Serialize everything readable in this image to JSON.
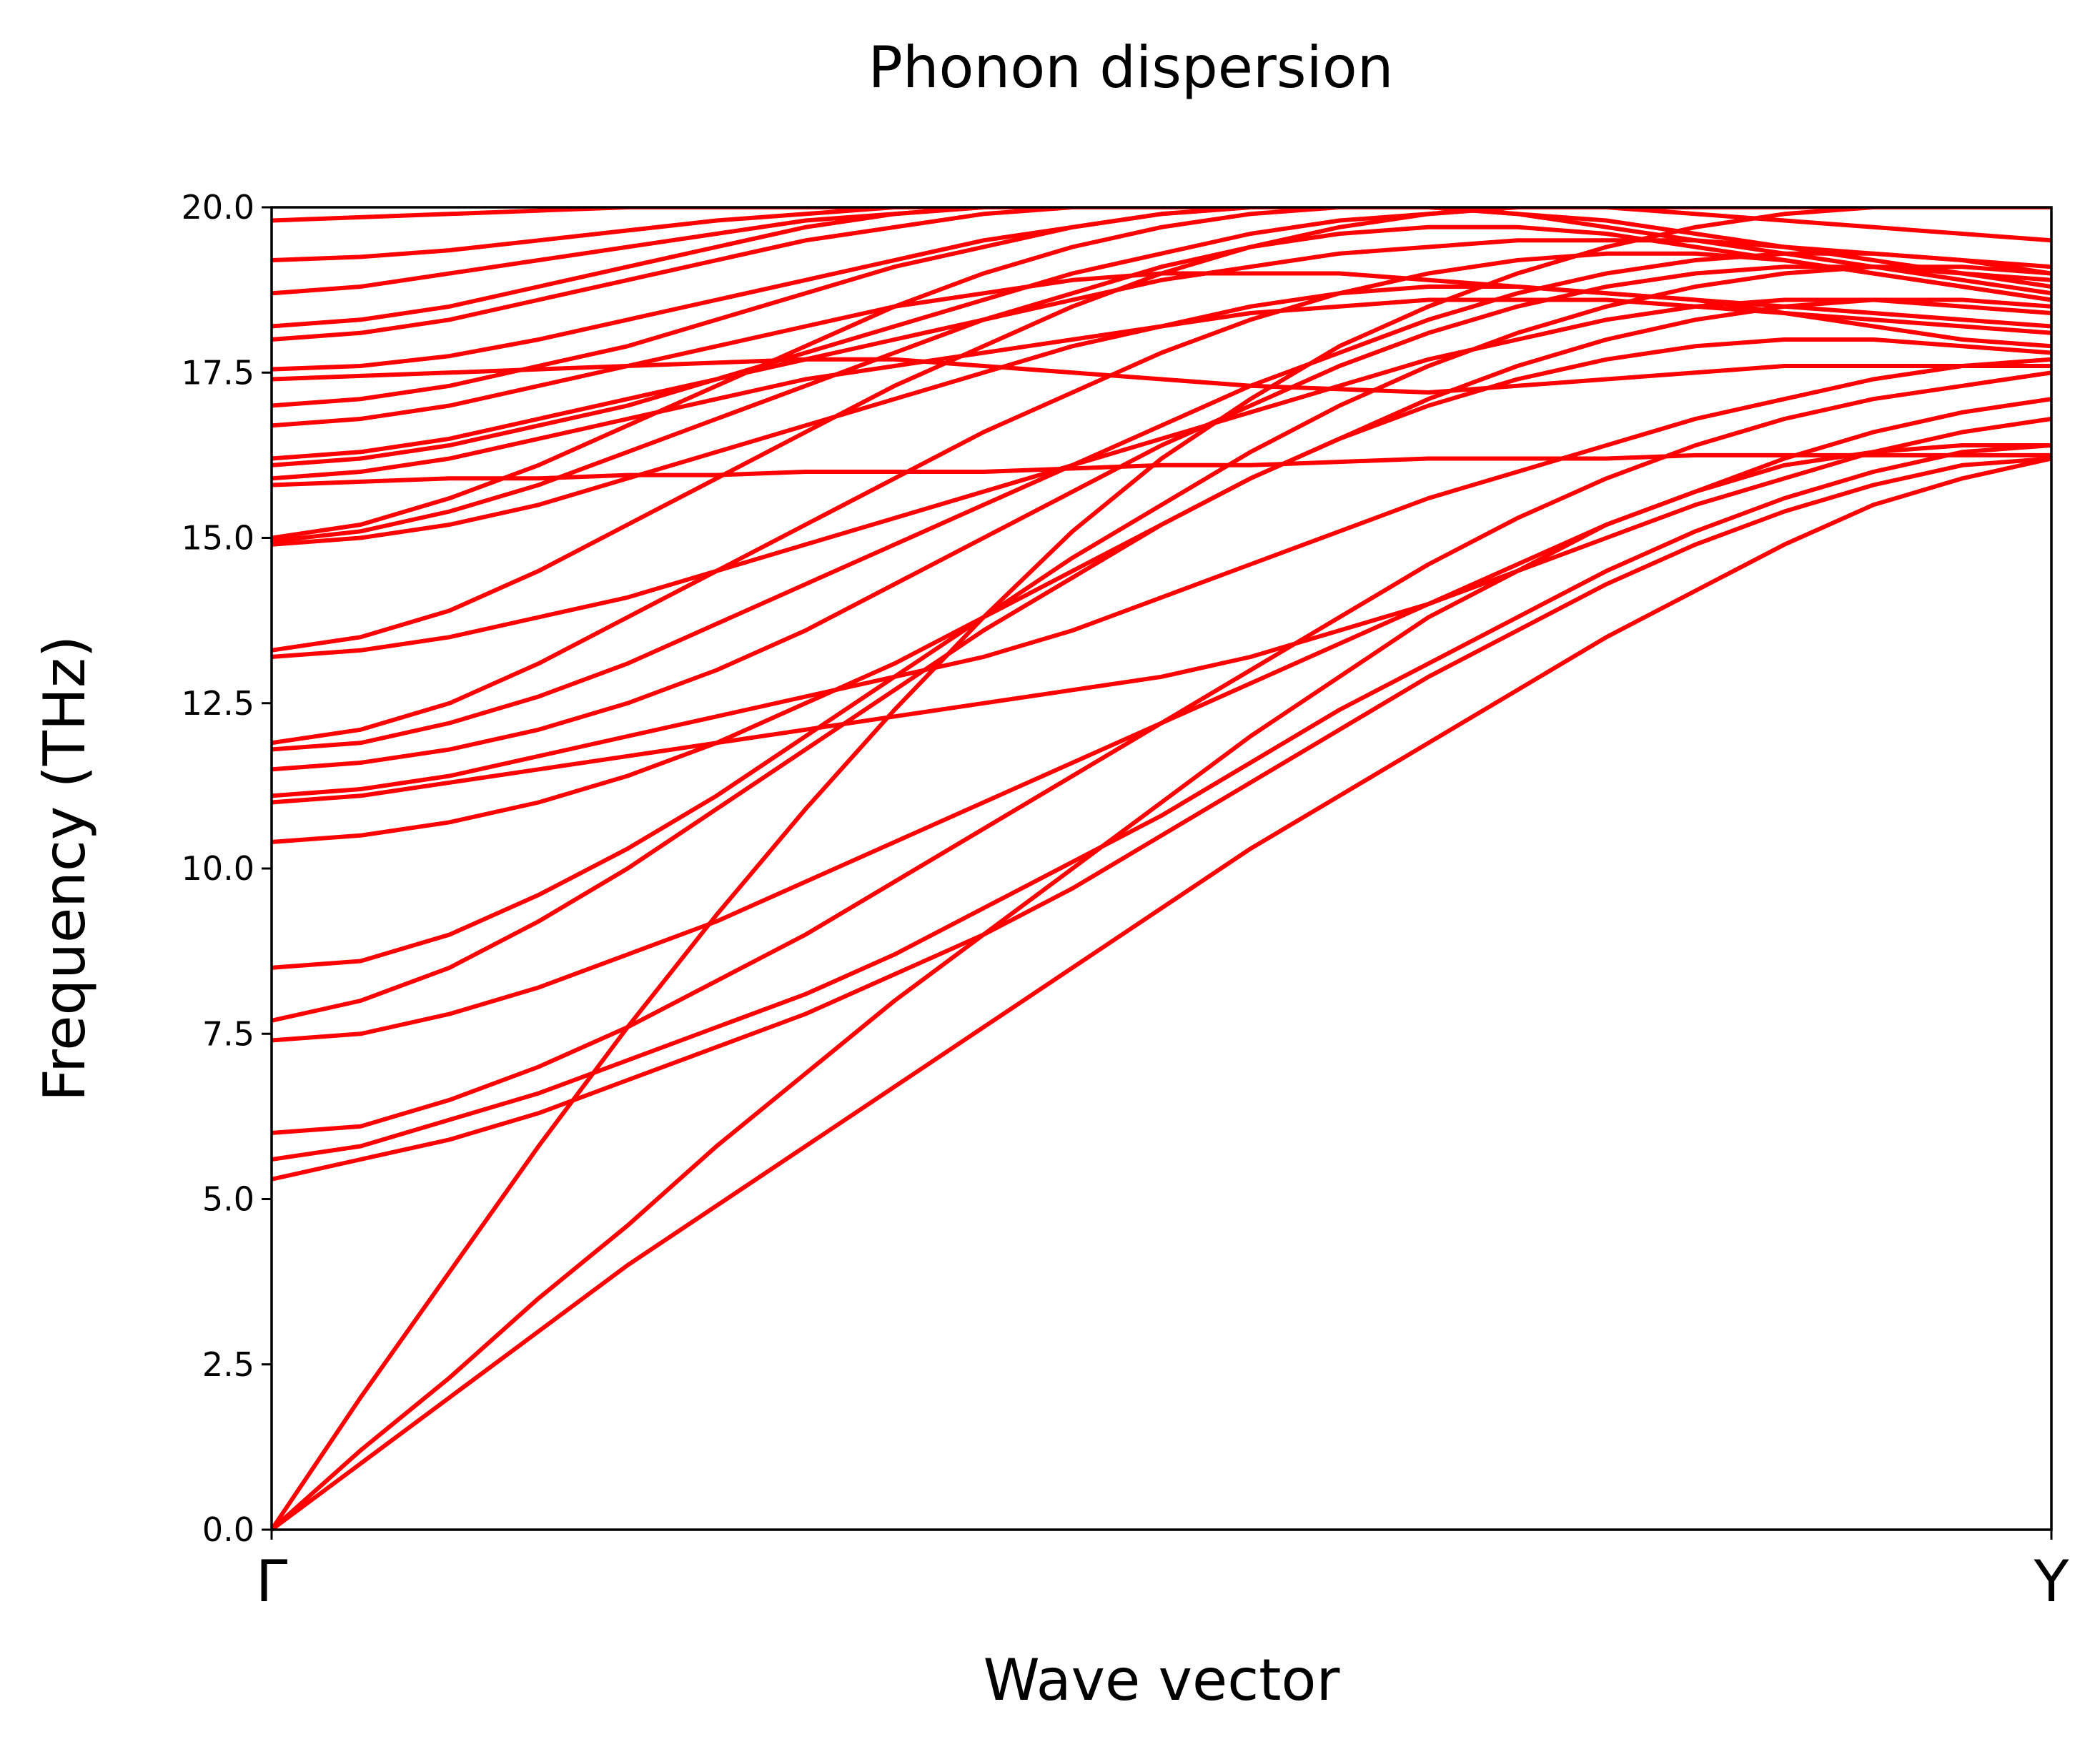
{
  "chart_data": {
    "type": "line",
    "title": "Phonon dispersion",
    "xlabel": "Wave vector",
    "ylabel": "Frequency (THz)",
    "ylim": [
      0,
      20
    ],
    "yticks": [
      "0.0",
      "2.5",
      "5.0",
      "7.5",
      "10.0",
      "12.5",
      "15.0",
      "17.5",
      "20.0"
    ],
    "xticks": [
      "Γ",
      "Y"
    ],
    "grid": false,
    "line_color": "#ff0000",
    "zero_line_color": "#000000",
    "x_samples": [
      0,
      0.05,
      0.1,
      0.15,
      0.2,
      0.25,
      0.3,
      0.35,
      0.4,
      0.45,
      0.5,
      0.55,
      0.6,
      0.65,
      0.7,
      0.75,
      0.8,
      0.85,
      0.9,
      0.95,
      1.0
    ],
    "series": [
      {
        "values": [
          0,
          1.0,
          2.0,
          3.0,
          4.0,
          4.9,
          5.8,
          6.7,
          7.6,
          8.5,
          9.4,
          10.3,
          11.1,
          11.9,
          12.7,
          13.5,
          14.2,
          14.9,
          15.5,
          15.9,
          16.2
        ]
      },
      {
        "values": [
          0,
          1.2,
          2.3,
          3.5,
          4.6,
          5.8,
          6.9,
          8.0,
          9.0,
          10.0,
          11.0,
          12.0,
          12.9,
          13.8,
          14.5,
          15.2,
          15.7,
          16.1,
          16.3,
          16.4,
          16.4
        ]
      },
      {
        "values": [
          0,
          2.0,
          3.9,
          5.8,
          7.6,
          9.3,
          10.9,
          12.4,
          13.8,
          15.1,
          16.2,
          17.1,
          17.9,
          18.5,
          19.0,
          19.4,
          19.7,
          19.9,
          20.0,
          20.0,
          20.0
        ]
      },
      {
        "values": [
          5.3,
          5.6,
          5.9,
          6.3,
          6.8,
          7.3,
          7.8,
          8.4,
          9.0,
          9.7,
          10.5,
          11.3,
          12.1,
          12.9,
          13.6,
          14.3,
          14.9,
          15.4,
          15.8,
          16.1,
          16.2
        ]
      },
      {
        "values": [
          5.6,
          5.8,
          6.2,
          6.6,
          7.1,
          7.6,
          8.1,
          8.7,
          9.4,
          10.1,
          10.8,
          11.6,
          12.4,
          13.1,
          13.8,
          14.5,
          15.1,
          15.6,
          16.0,
          16.3,
          16.4
        ]
      },
      {
        "values": [
          6.0,
          6.1,
          6.5,
          7.0,
          7.6,
          8.3,
          9.0,
          9.8,
          10.6,
          11.4,
          12.2,
          13.0,
          13.8,
          14.6,
          15.3,
          15.9,
          16.4,
          16.8,
          17.1,
          17.3,
          17.5
        ]
      },
      {
        "values": [
          7.4,
          7.5,
          7.8,
          8.2,
          8.7,
          9.2,
          9.8,
          10.4,
          11.0,
          11.6,
          12.2,
          12.8,
          13.4,
          14.0,
          14.6,
          15.2,
          15.7,
          16.2,
          16.6,
          16.9,
          17.1
        ]
      },
      {
        "values": [
          7.7,
          8.0,
          8.5,
          9.2,
          10.0,
          10.9,
          11.8,
          12.7,
          13.6,
          14.4,
          15.2,
          15.9,
          16.5,
          17.0,
          17.4,
          17.7,
          17.9,
          18.0,
          18.0,
          17.9,
          17.8
        ]
      },
      {
        "values": [
          8.5,
          8.6,
          9.0,
          9.6,
          10.3,
          11.1,
          12.0,
          12.9,
          13.8,
          14.7,
          15.5,
          16.3,
          17.0,
          17.6,
          18.1,
          18.5,
          18.8,
          19.0,
          19.1,
          19.1,
          19.0
        ]
      },
      {
        "values": [
          10.4,
          10.5,
          10.7,
          11.0,
          11.4,
          11.9,
          12.5,
          13.1,
          13.8,
          14.5,
          15.2,
          15.9,
          16.5,
          17.1,
          17.6,
          18.0,
          18.3,
          18.5,
          18.6,
          18.6,
          18.5
        ]
      },
      {
        "values": [
          11.0,
          11.1,
          11.3,
          11.5,
          11.7,
          11.9,
          12.1,
          12.3,
          12.5,
          12.7,
          12.9,
          13.2,
          13.6,
          14.0,
          14.5,
          15.0,
          15.5,
          15.9,
          16.3,
          16.6,
          16.8
        ]
      },
      {
        "values": [
          11.1,
          11.2,
          11.4,
          11.7,
          12.0,
          12.3,
          12.6,
          12.9,
          13.2,
          13.6,
          14.1,
          14.6,
          15.1,
          15.6,
          16.0,
          16.4,
          16.8,
          17.1,
          17.4,
          17.6,
          17.7
        ]
      },
      {
        "values": [
          11.5,
          11.6,
          11.8,
          12.1,
          12.5,
          13.0,
          13.6,
          14.3,
          15.0,
          15.7,
          16.4,
          17.0,
          17.6,
          18.1,
          18.5,
          18.8,
          19.0,
          19.1,
          19.1,
          19.0,
          18.9
        ]
      },
      {
        "values": [
          11.8,
          11.9,
          12.2,
          12.6,
          13.1,
          13.7,
          14.3,
          14.9,
          15.5,
          16.1,
          16.7,
          17.3,
          17.8,
          18.3,
          18.7,
          19.0,
          19.2,
          19.3,
          19.3,
          19.2,
          19.0
        ]
      },
      {
        "values": [
          11.9,
          12.1,
          12.5,
          13.1,
          13.8,
          14.5,
          15.2,
          15.9,
          16.6,
          17.2,
          17.8,
          18.3,
          18.7,
          19.0,
          19.2,
          19.3,
          19.3,
          19.2,
          19.0,
          18.8,
          18.6
        ]
      },
      {
        "values": [
          13.2,
          13.3,
          13.5,
          13.8,
          14.1,
          14.5,
          14.9,
          15.3,
          15.7,
          16.1,
          16.5,
          16.9,
          17.3,
          17.7,
          18.0,
          18.3,
          18.5,
          18.6,
          18.6,
          18.5,
          18.4
        ]
      },
      {
        "values": [
          13.3,
          13.5,
          13.9,
          14.5,
          15.2,
          15.9,
          16.6,
          17.3,
          17.9,
          18.5,
          19.0,
          19.4,
          19.7,
          19.9,
          20.0,
          20.0,
          20.0,
          20.0,
          20.0,
          20.0,
          20.0
        ]
      },
      {
        "values": [
          14.9,
          15.0,
          15.2,
          15.5,
          15.9,
          16.3,
          16.7,
          17.1,
          17.5,
          17.9,
          18.2,
          18.5,
          18.7,
          18.8,
          18.8,
          18.7,
          18.6,
          18.4,
          18.2,
          18.0,
          17.9
        ]
      },
      {
        "values": [
          14.95,
          15.1,
          15.4,
          15.8,
          16.3,
          16.8,
          17.3,
          17.8,
          18.3,
          18.7,
          19.1,
          19.4,
          19.6,
          19.7,
          19.7,
          19.6,
          19.4,
          19.2,
          19.0,
          18.8,
          18.6
        ]
      },
      {
        "values": [
          15.0,
          15.2,
          15.6,
          16.1,
          16.7,
          17.3,
          17.9,
          18.5,
          19.0,
          19.4,
          19.7,
          19.9,
          20.0,
          20.0,
          19.9,
          19.7,
          19.5,
          19.3,
          19.1,
          18.9,
          18.7
        ]
      },
      {
        "values": [
          15.8,
          15.85,
          15.9,
          15.9,
          15.95,
          15.95,
          16.0,
          16.0,
          16.0,
          16.05,
          16.1,
          16.1,
          16.15,
          16.2,
          16.2,
          16.2,
          16.25,
          16.25,
          16.25,
          16.25,
          16.25
        ]
      },
      {
        "values": [
          15.9,
          16.0,
          16.2,
          16.5,
          16.8,
          17.1,
          17.4,
          17.6,
          17.8,
          18.0,
          18.2,
          18.4,
          18.5,
          18.6,
          18.6,
          18.6,
          18.5,
          18.4,
          18.3,
          18.2,
          18.1
        ]
      },
      {
        "values": [
          16.1,
          16.2,
          16.4,
          16.7,
          17.0,
          17.4,
          17.8,
          18.2,
          18.6,
          19.0,
          19.3,
          19.6,
          19.8,
          19.9,
          20.0,
          20.0,
          19.9,
          19.8,
          19.7,
          19.6,
          19.5
        ]
      },
      {
        "values": [
          16.2,
          16.3,
          16.5,
          16.8,
          17.1,
          17.4,
          17.7,
          18.0,
          18.3,
          18.6,
          18.9,
          19.1,
          19.3,
          19.4,
          19.5,
          19.5,
          19.5,
          19.4,
          19.3,
          19.2,
          19.1
        ]
      },
      {
        "values": [
          16.7,
          16.8,
          17.0,
          17.3,
          17.6,
          17.9,
          18.2,
          18.5,
          18.7,
          18.9,
          19.0,
          19.0,
          19.0,
          18.9,
          18.8,
          18.7,
          18.6,
          18.5,
          18.4,
          18.3,
          18.2
        ]
      },
      {
        "values": [
          17.0,
          17.1,
          17.3,
          17.6,
          17.9,
          18.3,
          18.7,
          19.1,
          19.4,
          19.7,
          19.9,
          20.0,
          20.0,
          20.0,
          20.0,
          20.0,
          20.0,
          20.0,
          20.0,
          20.0,
          20.0
        ]
      },
      {
        "values": [
          17.4,
          17.45,
          17.5,
          17.55,
          17.6,
          17.65,
          17.7,
          17.7,
          17.6,
          17.5,
          17.4,
          17.3,
          17.25,
          17.2,
          17.3,
          17.4,
          17.5,
          17.6,
          17.6,
          17.6,
          17.6
        ]
      },
      {
        "values": [
          17.55,
          17.6,
          17.75,
          18.0,
          18.3,
          18.6,
          18.9,
          19.2,
          19.5,
          19.7,
          19.9,
          20.0,
          20.0,
          20.0,
          19.9,
          19.8,
          19.6,
          19.4,
          19.2,
          19.0,
          18.8
        ]
      },
      {
        "values": [
          18.0,
          18.1,
          18.3,
          18.6,
          18.9,
          19.2,
          19.5,
          19.7,
          19.9,
          20.0,
          20.0,
          20.0,
          20.0,
          20.0,
          20.0,
          20.0,
          20.0,
          20.0,
          20.0,
          20.0,
          20.0
        ]
      },
      {
        "values": [
          18.2,
          18.3,
          18.5,
          18.8,
          19.1,
          19.4,
          19.7,
          19.9,
          20.0,
          20.0,
          20.0,
          20.0,
          20.0,
          20.0,
          20.0,
          20.0,
          20.0,
          20.0,
          20.0,
          20.0,
          20.0
        ]
      },
      {
        "values": [
          18.7,
          18.8,
          19.0,
          19.2,
          19.4,
          19.6,
          19.8,
          19.9,
          20.0,
          20.0,
          20.0,
          20.0,
          20.0,
          20.0,
          20.0,
          20.0,
          20.0,
          20.0,
          20.0,
          20.0,
          20.0
        ]
      },
      {
        "values": [
          19.2,
          19.25,
          19.35,
          19.5,
          19.65,
          19.8,
          19.9,
          20.0,
          20.0,
          20.0,
          20.0,
          20.0,
          20.0,
          20.0,
          20.0,
          20.0,
          20.0,
          20.0,
          20.0,
          20.0,
          20.0
        ]
      },
      {
        "values": [
          19.8,
          19.85,
          19.9,
          19.95,
          20.0,
          20.0,
          20.0,
          20.0,
          20.0,
          20.0,
          20.0,
          20.0,
          20.0,
          20.0,
          20.0,
          20.0,
          20.0,
          20.0,
          20.0,
          20.0,
          20.0
        ]
      }
    ]
  }
}
